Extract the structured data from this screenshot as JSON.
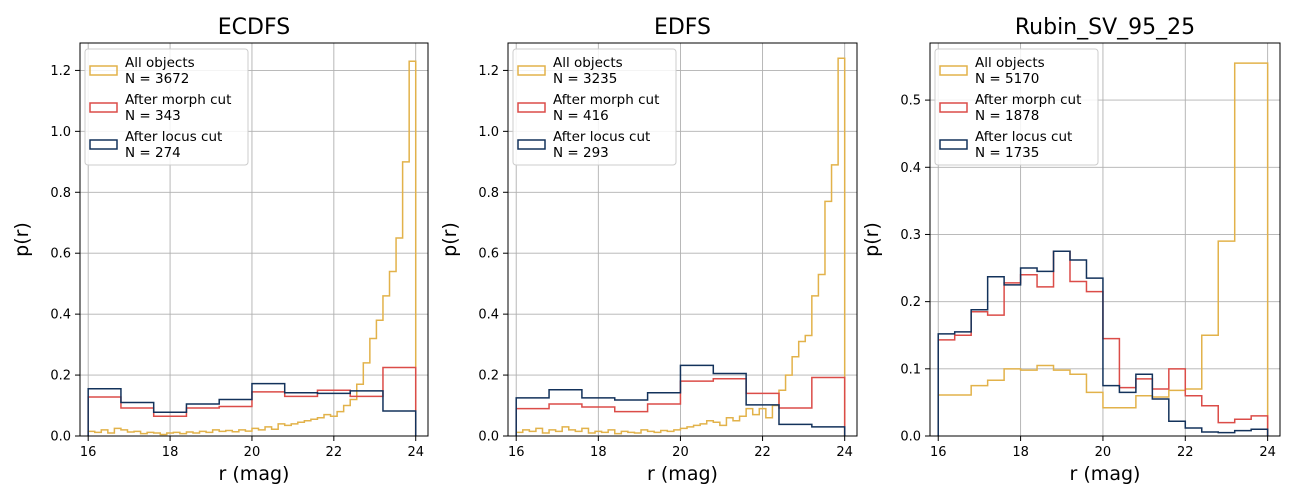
{
  "colors": {
    "all": "#e2b24a",
    "morph": "#db4c48",
    "locus": "#13325b",
    "legend_border": "#cccccc",
    "grid": "#b0b0b0"
  },
  "chart_data": [
    {
      "type": "step-histogram",
      "title": "ECDFS",
      "xlabel": "r (mag)",
      "ylabel": "p(r)",
      "xlim": [
        15.8,
        24.3
      ],
      "ylim": [
        0,
        1.29
      ],
      "xticks": [
        16,
        18,
        20,
        22,
        24
      ],
      "xtick_labels": [
        "16",
        "18",
        "20",
        "22",
        "24"
      ],
      "yticks": [
        0.0,
        0.2,
        0.4,
        0.6,
        0.8,
        1.0,
        1.2
      ],
      "ytick_labels": [
        "0.0",
        "0.2",
        "0.4",
        "0.6",
        "0.8",
        "1.0",
        "1.2"
      ],
      "grid": true,
      "legend_position": "top-left",
      "series": [
        {
          "key": "all",
          "name": "All objects",
          "count_label": "N = 3672",
          "edges": [
            16.0,
            16.16,
            16.32,
            16.48,
            16.64,
            16.8,
            16.96,
            17.12,
            17.28,
            17.44,
            17.6,
            17.76,
            17.92,
            18.08,
            18.24,
            18.4,
            18.56,
            18.72,
            18.88,
            19.04,
            19.2,
            19.36,
            19.52,
            19.68,
            19.84,
            20.0,
            20.16,
            20.32,
            20.48,
            20.64,
            20.8,
            20.96,
            21.12,
            21.28,
            21.44,
            21.6,
            21.76,
            21.92,
            22.08,
            22.24,
            22.4,
            22.56,
            22.72,
            22.88,
            23.04,
            23.2,
            23.36,
            23.52,
            23.68,
            23.84,
            24.0
          ],
          "values": [
            0.015,
            0.012,
            0.02,
            0.01,
            0.025,
            0.02,
            0.013,
            0.015,
            0.008,
            0.012,
            0.01,
            0.005,
            0.01,
            0.012,
            0.008,
            0.013,
            0.01,
            0.015,
            0.012,
            0.02,
            0.015,
            0.018,
            0.014,
            0.02,
            0.016,
            0.025,
            0.02,
            0.03,
            0.022,
            0.04,
            0.035,
            0.04,
            0.045,
            0.05,
            0.055,
            0.06,
            0.07,
            0.065,
            0.08,
            0.1,
            0.12,
            0.17,
            0.24,
            0.32,
            0.38,
            0.46,
            0.54,
            0.65,
            0.9,
            1.23
          ]
        },
        {
          "key": "morph",
          "name": "After morph cut",
          "count_label": "N = 343",
          "edges": [
            16.0,
            16.8,
            17.6,
            18.4,
            19.2,
            20.0,
            20.8,
            21.6,
            22.4,
            23.2,
            24.0
          ],
          "values": [
            0.128,
            0.092,
            0.065,
            0.092,
            0.097,
            0.145,
            0.13,
            0.15,
            0.13,
            0.225
          ]
        },
        {
          "key": "locus",
          "name": "After locus cut",
          "count_label": "N = 274",
          "edges": [
            16.0,
            16.8,
            17.6,
            18.4,
            19.2,
            20.0,
            20.8,
            21.6,
            22.4,
            23.2,
            24.0
          ],
          "values": [
            0.155,
            0.11,
            0.078,
            0.105,
            0.12,
            0.172,
            0.142,
            0.14,
            0.148,
            0.082
          ]
        }
      ]
    },
    {
      "type": "step-histogram",
      "title": "EDFS",
      "xlabel": "r (mag)",
      "ylabel": "p(r)",
      "xlim": [
        15.8,
        24.3
      ],
      "ylim": [
        0,
        1.29
      ],
      "xticks": [
        16,
        18,
        20,
        22,
        24
      ],
      "xtick_labels": [
        "16",
        "18",
        "20",
        "22",
        "24"
      ],
      "yticks": [
        0.0,
        0.2,
        0.4,
        0.6,
        0.8,
        1.0,
        1.2
      ],
      "ytick_labels": [
        "0.0",
        "0.2",
        "0.4",
        "0.6",
        "0.8",
        "1.0",
        "1.2"
      ],
      "grid": true,
      "legend_position": "top-left",
      "series": [
        {
          "key": "all",
          "name": "All objects",
          "count_label": "N = 3235",
          "edges": [
            16.0,
            16.16,
            16.32,
            16.48,
            16.64,
            16.8,
            16.96,
            17.12,
            17.28,
            17.44,
            17.6,
            17.76,
            17.92,
            18.08,
            18.24,
            18.4,
            18.56,
            18.72,
            18.88,
            19.04,
            19.2,
            19.36,
            19.52,
            19.68,
            19.84,
            20.0,
            20.16,
            20.32,
            20.48,
            20.64,
            20.8,
            20.96,
            21.12,
            21.28,
            21.44,
            21.6,
            21.76,
            21.92,
            22.08,
            22.24,
            22.4,
            22.56,
            22.72,
            22.88,
            23.04,
            23.2,
            23.36,
            23.52,
            23.68,
            23.84,
            24.0
          ],
          "values": [
            0.012,
            0.02,
            0.015,
            0.025,
            0.01,
            0.02,
            0.015,
            0.03,
            0.02,
            0.015,
            0.025,
            0.01,
            0.015,
            0.012,
            0.02,
            0.008,
            0.015,
            0.012,
            0.01,
            0.02,
            0.015,
            0.012,
            0.018,
            0.015,
            0.02,
            0.025,
            0.03,
            0.035,
            0.04,
            0.05,
            0.045,
            0.035,
            0.06,
            0.05,
            0.065,
            0.09,
            0.07,
            0.09,
            0.06,
            0.1,
            0.15,
            0.2,
            0.26,
            0.31,
            0.33,
            0.46,
            0.53,
            0.77,
            0.89,
            1.24
          ]
        },
        {
          "key": "morph",
          "name": "After morph cut",
          "count_label": "N = 416",
          "edges": [
            16.0,
            16.8,
            17.6,
            18.4,
            19.2,
            20.0,
            20.8,
            21.6,
            22.4,
            23.2,
            24.0
          ],
          "values": [
            0.09,
            0.105,
            0.095,
            0.08,
            0.105,
            0.18,
            0.188,
            0.14,
            0.092,
            0.192
          ]
        },
        {
          "key": "locus",
          "name": "After locus cut",
          "count_label": "N = 293",
          "edges": [
            16.0,
            16.8,
            17.6,
            18.4,
            19.2,
            20.0,
            20.8,
            21.6,
            22.4,
            23.2,
            24.0
          ],
          "values": [
            0.125,
            0.152,
            0.125,
            0.118,
            0.142,
            0.232,
            0.205,
            0.102,
            0.038,
            0.03
          ]
        }
      ]
    },
    {
      "type": "step-histogram",
      "title": "Rubin_SV_95_25",
      "xlabel": "r (mag)",
      "ylabel": "p(r)",
      "xlim": [
        15.8,
        24.3
      ],
      "ylim": [
        0,
        0.585
      ],
      "xticks": [
        16,
        18,
        20,
        22,
        24
      ],
      "xtick_labels": [
        "16",
        "18",
        "20",
        "22",
        "24"
      ],
      "yticks": [
        0.0,
        0.1,
        0.2,
        0.3,
        0.4,
        0.5
      ],
      "ytick_labels": [
        "0.0",
        "0.1",
        "0.2",
        "0.3",
        "0.4",
        "0.5"
      ],
      "grid": true,
      "legend_position": "top-left",
      "series": [
        {
          "key": "all",
          "name": "All objects",
          "count_label": "N = 5170",
          "edges": [
            16.0,
            16.4,
            16.8,
            17.2,
            17.6,
            18.0,
            18.4,
            18.8,
            19.2,
            19.6,
            20.0,
            20.4,
            20.8,
            21.2,
            21.6,
            22.0,
            22.4,
            22.8,
            23.2,
            23.6,
            24.0
          ],
          "values": [
            0.061,
            0.061,
            0.075,
            0.083,
            0.1,
            0.098,
            0.105,
            0.098,
            0.092,
            0.065,
            0.042,
            0.042,
            0.06,
            0.058,
            0.068,
            0.07,
            0.15,
            0.29,
            0.555,
            0.555
          ]
        },
        {
          "key": "morph",
          "name": "After morph cut",
          "count_label": "N = 1878",
          "edges": [
            16.0,
            16.2,
            16.4,
            16.6,
            16.8,
            17.0,
            17.2,
            17.4,
            17.6,
            17.8,
            18.0,
            18.2,
            18.4,
            18.6,
            18.8,
            19.0,
            19.2,
            19.4,
            19.6,
            19.8,
            20.0,
            20.2,
            20.4,
            20.6,
            20.8,
            21.0,
            21.2,
            21.4,
            21.6,
            21.8,
            22.0,
            22.2,
            22.4,
            22.6,
            22.8,
            23.0,
            23.2,
            23.4,
            23.6,
            23.8,
            24.0
          ],
          "values": [
            0.143,
            0.143,
            0.15,
            0.15,
            0.185,
            0.185,
            0.18,
            0.18,
            0.228,
            0.228,
            0.24,
            0.24,
            0.222,
            0.222,
            0.275,
            0.275,
            0.23,
            0.23,
            0.215,
            0.215,
            0.145,
            0.145,
            0.072,
            0.072,
            0.085,
            0.085,
            0.07,
            0.07,
            0.1,
            0.1,
            0.06,
            0.06,
            0.045,
            0.045,
            0.02,
            0.02,
            0.025,
            0.025,
            0.03,
            0.03
          ]
        },
        {
          "key": "locus",
          "name": "After locus cut",
          "count_label": "N = 1735",
          "edges": [
            16.0,
            16.2,
            16.4,
            16.6,
            16.8,
            17.0,
            17.2,
            17.4,
            17.6,
            17.8,
            18.0,
            18.2,
            18.4,
            18.6,
            18.8,
            19.0,
            19.2,
            19.4,
            19.6,
            19.8,
            20.0,
            20.2,
            20.4,
            20.6,
            20.8,
            21.0,
            21.2,
            21.4,
            21.6,
            21.8,
            22.0,
            22.2,
            22.4,
            22.6,
            22.8,
            23.0,
            23.2,
            23.4,
            23.6,
            23.8,
            24.0
          ],
          "values": [
            0.152,
            0.152,
            0.155,
            0.155,
            0.188,
            0.188,
            0.237,
            0.237,
            0.225,
            0.225,
            0.25,
            0.25,
            0.245,
            0.245,
            0.275,
            0.275,
            0.262,
            0.262,
            0.235,
            0.235,
            0.075,
            0.075,
            0.065,
            0.065,
            0.092,
            0.092,
            0.055,
            0.055,
            0.022,
            0.022,
            0.012,
            0.012,
            0.006,
            0.006,
            0.005,
            0.005,
            0.008,
            0.008,
            0.01,
            0.01
          ]
        }
      ]
    }
  ]
}
